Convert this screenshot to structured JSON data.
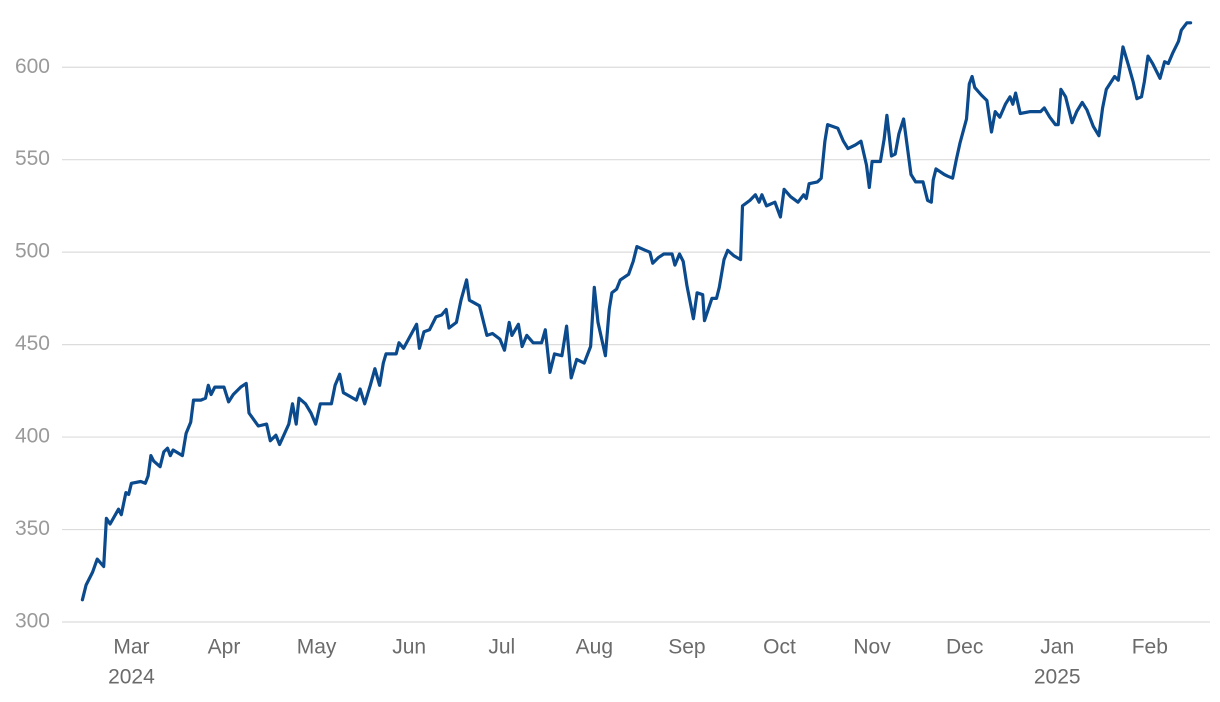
{
  "chart_data": {
    "type": "line",
    "x": [
      2.47,
      2.51,
      2.58,
      2.63,
      2.7,
      2.73,
      2.77,
      2.86,
      2.89,
      2.94,
      2.97,
      3.0,
      3.1,
      3.15,
      3.18,
      3.21,
      3.24,
      3.31,
      3.35,
      3.39,
      3.42,
      3.45,
      3.55,
      3.59,
      3.64,
      3.67,
      3.75,
      3.8,
      3.83,
      3.86,
      3.9,
      4.0,
      4.05,
      4.1,
      4.18,
      4.24,
      4.27,
      4.37,
      4.46,
      4.5,
      4.56,
      4.6,
      4.7,
      4.74,
      4.78,
      4.81,
      4.88,
      4.94,
      4.99,
      5.04,
      5.16,
      5.2,
      5.25,
      5.29,
      5.36,
      5.43,
      5.47,
      5.52,
      5.58,
      5.63,
      5.68,
      5.72,
      5.75,
      5.86,
      5.89,
      5.94,
      6.08,
      6.11,
      6.16,
      6.22,
      6.29,
      6.35,
      6.4,
      6.43,
      6.51,
      6.56,
      6.62,
      6.65,
      6.76,
      6.84,
      6.9,
      6.98,
      7.03,
      7.08,
      7.11,
      7.18,
      7.22,
      7.27,
      7.34,
      7.43,
      7.47,
      7.52,
      7.57,
      7.65,
      7.7,
      7.75,
      7.81,
      7.89,
      7.96,
      8.0,
      8.04,
      8.12,
      8.16,
      8.19,
      8.24,
      8.28,
      8.37,
      8.42,
      8.46,
      8.55,
      8.6,
      8.63,
      8.69,
      8.75,
      8.84,
      8.87,
      8.92,
      8.96,
      9.0,
      9.07,
      9.11,
      9.17,
      9.19,
      9.27,
      9.32,
      9.35,
      9.4,
      9.44,
      9.51,
      9.58,
      9.6,
      9.68,
      9.74,
      9.78,
      9.81,
      9.86,
      9.95,
      10.01,
      10.05,
      10.12,
      10.2,
      10.26,
      10.29,
      10.32,
      10.41,
      10.45,
      10.49,
      10.52,
      10.63,
      10.69,
      10.74,
      10.82,
      10.88,
      10.94,
      10.97,
      11.0,
      11.09,
      11.13,
      11.16,
      11.21,
      11.25,
      11.29,
      11.34,
      11.38,
      11.42,
      11.47,
      11.55,
      11.6,
      11.64,
      11.66,
      11.69,
      11.78,
      11.82,
      11.87,
      11.91,
      11.95,
      12.02,
      12.05,
      12.08,
      12.11,
      12.18,
      12.24,
      12.29,
      12.33,
      12.38,
      12.44,
      12.49,
      12.52,
      12.55,
      12.6,
      12.71,
      12.82,
      12.86,
      12.92,
      12.98,
      13.01,
      13.04,
      13.09,
      13.16,
      13.21,
      13.27,
      13.32,
      13.39,
      13.45,
      13.49,
      13.53,
      13.62,
      13.66,
      13.71,
      13.77,
      13.82,
      13.86,
      13.91,
      13.94,
      13.98,
      14.03,
      14.11,
      14.16,
      14.2,
      14.25,
      14.31,
      14.34,
      14.4,
      14.44
    ],
    "series": [
      {
        "color": "#0b4a8c",
        "values": [
          312,
          320,
          327,
          334,
          330,
          356,
          353,
          361,
          358,
          370,
          369,
          375,
          376,
          375,
          379,
          390,
          387,
          384,
          392,
          394,
          390,
          393,
          390,
          402,
          408,
          420,
          420,
          421,
          428,
          423,
          427,
          427,
          419,
          423,
          427,
          429,
          413,
          406,
          407,
          398,
          401,
          396,
          407,
          418,
          407,
          421,
          418,
          413,
          407,
          418,
          418,
          428,
          434,
          424,
          422,
          420,
          426,
          418,
          428,
          437,
          428,
          440,
          445,
          445,
          451,
          448,
          461,
          448,
          457,
          458,
          465,
          466,
          469,
          459,
          462,
          474,
          485,
          474,
          471,
          455,
          456,
          453,
          447,
          462,
          455,
          461,
          449,
          455,
          451,
          451,
          458,
          435,
          445,
          444,
          460,
          432,
          442,
          440,
          449,
          481,
          462,
          444,
          469,
          478,
          480,
          485,
          488,
          495,
          503,
          501,
          500,
          494,
          497,
          499,
          499,
          493,
          499,
          495,
          482,
          464,
          478,
          477,
          463,
          475,
          475,
          481,
          496,
          501,
          498,
          496,
          525,
          528,
          531,
          527,
          531,
          525,
          527,
          519,
          534,
          530,
          527,
          531,
          529,
          537,
          538,
          540,
          560,
          569,
          567,
          560,
          556,
          558,
          560,
          547,
          535,
          549,
          549,
          561,
          574,
          552,
          553,
          564,
          572,
          557,
          542,
          538,
          538,
          528,
          527,
          539,
          545,
          542,
          541,
          540,
          550,
          559,
          572,
          591,
          595,
          589,
          585,
          582,
          565,
          576,
          573,
          580,
          584,
          580,
          586,
          575,
          576,
          576,
          578,
          573,
          569,
          569,
          588,
          584,
          570,
          576,
          581,
          577,
          568,
          563,
          578,
          588,
          595,
          593,
          611,
          601,
          592,
          583,
          584,
          592,
          606,
          602,
          594,
          603,
          602,
          608,
          614,
          620,
          624,
          624
        ]
      }
    ],
    "xlim": [
      2.25,
      14.65
    ],
    "xticks": [
      {
        "value": 3,
        "label": "Mar"
      },
      {
        "value": 4,
        "label": "Apr"
      },
      {
        "value": 5,
        "label": "May"
      },
      {
        "value": 6,
        "label": "Jun"
      },
      {
        "value": 7,
        "label": "Jul"
      },
      {
        "value": 8,
        "label": "Aug"
      },
      {
        "value": 9,
        "label": "Sep"
      },
      {
        "value": 10,
        "label": "Oct"
      },
      {
        "value": 11,
        "label": "Nov"
      },
      {
        "value": 12,
        "label": "Dec"
      },
      {
        "value": 13,
        "label": "Jan"
      },
      {
        "value": 14,
        "label": "Feb"
      }
    ],
    "year_labels": [
      {
        "value": 3,
        "label": "2024"
      },
      {
        "value": 13,
        "label": "2025"
      }
    ],
    "ylim": [
      300,
      625
    ],
    "yticks": [
      300,
      350,
      400,
      450,
      500,
      550,
      600
    ],
    "grid": true
  }
}
